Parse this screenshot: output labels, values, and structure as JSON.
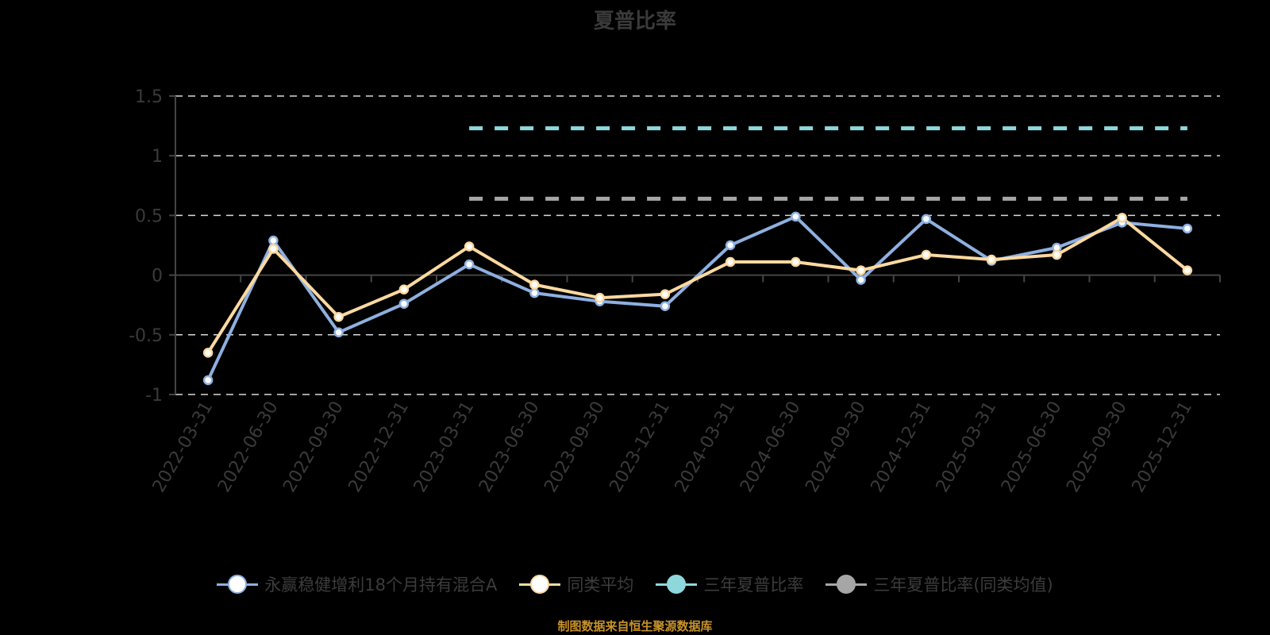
{
  "chart_data": {
    "type": "line",
    "title": "夏普比率",
    "xlabel": "",
    "ylabel": "",
    "ylim": [
      -1,
      1.5
    ],
    "yticks": [
      1.5,
      1,
      0.5,
      0,
      -0.5,
      -1
    ],
    "ytick_labels": [
      "1.5",
      "1",
      "0.5",
      "0",
      "-0.5",
      "-1"
    ],
    "grid": true,
    "legend_position": "bottom",
    "categories": [
      "2022-03-31",
      "2022-06-30",
      "2022-09-30",
      "2022-12-31",
      "2023-03-31",
      "2023-06-30",
      "2023-09-30",
      "2023-12-31",
      "2024-03-31",
      "2024-06-30",
      "2024-09-30",
      "2024-12-31",
      "2025-03-31",
      "2025-06-30",
      "2025-09-30",
      "2025-12-31"
    ],
    "series": [
      {
        "name": "永赢稳健增利18个月持有混合A",
        "color": "#8eb0e0",
        "style": "solid-with-markers",
        "values": [
          -0.88,
          0.29,
          -0.48,
          -0.24,
          0.09,
          -0.15,
          -0.22,
          -0.26,
          0.25,
          0.49,
          -0.04,
          0.47,
          0.12,
          0.23,
          0.44,
          0.39
        ]
      },
      {
        "name": "同类平均",
        "color": "#fdd9a0",
        "style": "solid-with-markers",
        "values": [
          -0.65,
          0.22,
          -0.35,
          -0.12,
          0.24,
          -0.08,
          -0.19,
          -0.16,
          0.11,
          0.11,
          0.04,
          0.17,
          0.13,
          0.17,
          0.48,
          0.04
        ]
      },
      {
        "name": "三年夏普比率",
        "color": "#8ed8dc",
        "style": "dashed",
        "values": [
          null,
          null,
          null,
          null,
          1.23,
          1.23,
          1.23,
          1.23,
          1.23,
          1.23,
          1.23,
          1.23,
          1.23,
          1.23,
          1.23,
          1.23
        ]
      },
      {
        "name": "三年夏普比率(同类均值)",
        "color": "#a6a6a6",
        "style": "dashed",
        "values": [
          null,
          null,
          null,
          null,
          0.64,
          0.64,
          0.64,
          0.64,
          0.64,
          0.64,
          0.64,
          0.64,
          0.64,
          0.64,
          0.64,
          0.64
        ]
      }
    ]
  },
  "legend": [
    {
      "label": "永赢稳健增利18个月持有混合A",
      "color": "#8eb0e0",
      "fill": "#ffffff"
    },
    {
      "label": "同类平均",
      "color": "#fdd9a0",
      "fill": "#ffffff"
    },
    {
      "label": "三年夏普比率",
      "color": "#8ed8dc",
      "fill": "#8ed8dc"
    },
    {
      "label": "三年夏普比率(同类均值)",
      "color": "#a6a6a6",
      "fill": "#a6a6a6"
    }
  ],
  "footer": "制图数据来自恒生聚源数据库"
}
